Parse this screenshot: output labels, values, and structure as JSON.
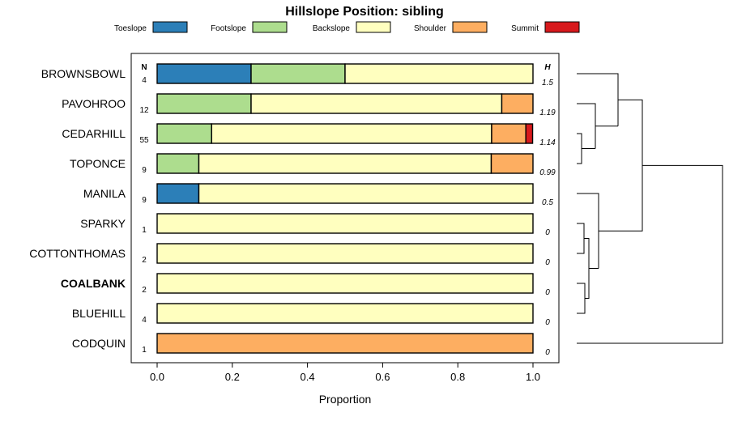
{
  "chart_data": {
    "type": "bar",
    "orientation": "horizontal",
    "stacked": true,
    "title": "Hillslope Position: sibling",
    "xlabel": "Proportion",
    "xlim": [
      0,
      1
    ],
    "x_ticks": [
      "0.0",
      "0.2",
      "0.4",
      "0.6",
      "0.8",
      "1.0"
    ],
    "n_header": "N",
    "h_header": "H",
    "legend_position": "top",
    "series": [
      {
        "name": "Toeslope",
        "color": "#2c7fb8"
      },
      {
        "name": "Footslope",
        "color": "#addd8e"
      },
      {
        "name": "Backslope",
        "color": "#ffffbf"
      },
      {
        "name": "Shoulder",
        "color": "#fdae61"
      },
      {
        "name": "Summit",
        "color": "#d7191c"
      }
    ],
    "rows": [
      {
        "label": "BROWNSBOWL",
        "n": "4",
        "h": "1.5",
        "bold": false,
        "values": [
          0.25,
          0.25,
          0.5,
          0,
          0
        ]
      },
      {
        "label": "PAVOHROO",
        "n": "12",
        "h": "1.19",
        "bold": false,
        "values": [
          0,
          0.25,
          0.667,
          0.083,
          0
        ]
      },
      {
        "label": "CEDARHILL",
        "n": "55",
        "h": "1.14",
        "bold": false,
        "values": [
          0,
          0.145,
          0.745,
          0.091,
          0.018
        ]
      },
      {
        "label": "TOPONCE",
        "n": "9",
        "h": "0.99",
        "bold": false,
        "values": [
          0,
          0.111,
          0.778,
          0.111,
          0
        ]
      },
      {
        "label": "MANILA",
        "n": "9",
        "h": "0.5",
        "bold": false,
        "values": [
          0.111,
          0,
          0.889,
          0,
          0
        ]
      },
      {
        "label": "SPARKY",
        "n": "1",
        "h": "0",
        "bold": false,
        "values": [
          0,
          0,
          1,
          0,
          0
        ]
      },
      {
        "label": "COTTONTHOMAS",
        "n": "2",
        "h": "0",
        "bold": false,
        "values": [
          0,
          0,
          1,
          0,
          0
        ]
      },
      {
        "label": "COALBANK",
        "n": "2",
        "h": "0",
        "bold": true,
        "values": [
          0,
          0,
          1,
          0,
          0
        ]
      },
      {
        "label": "BLUEHILL",
        "n": "4",
        "h": "0",
        "bold": false,
        "values": [
          0,
          0,
          1,
          0,
          0
        ]
      },
      {
        "label": "CODQUIN",
        "n": "1",
        "h": "0",
        "bold": false,
        "values": [
          0,
          0,
          0,
          1,
          0
        ]
      }
    ]
  }
}
